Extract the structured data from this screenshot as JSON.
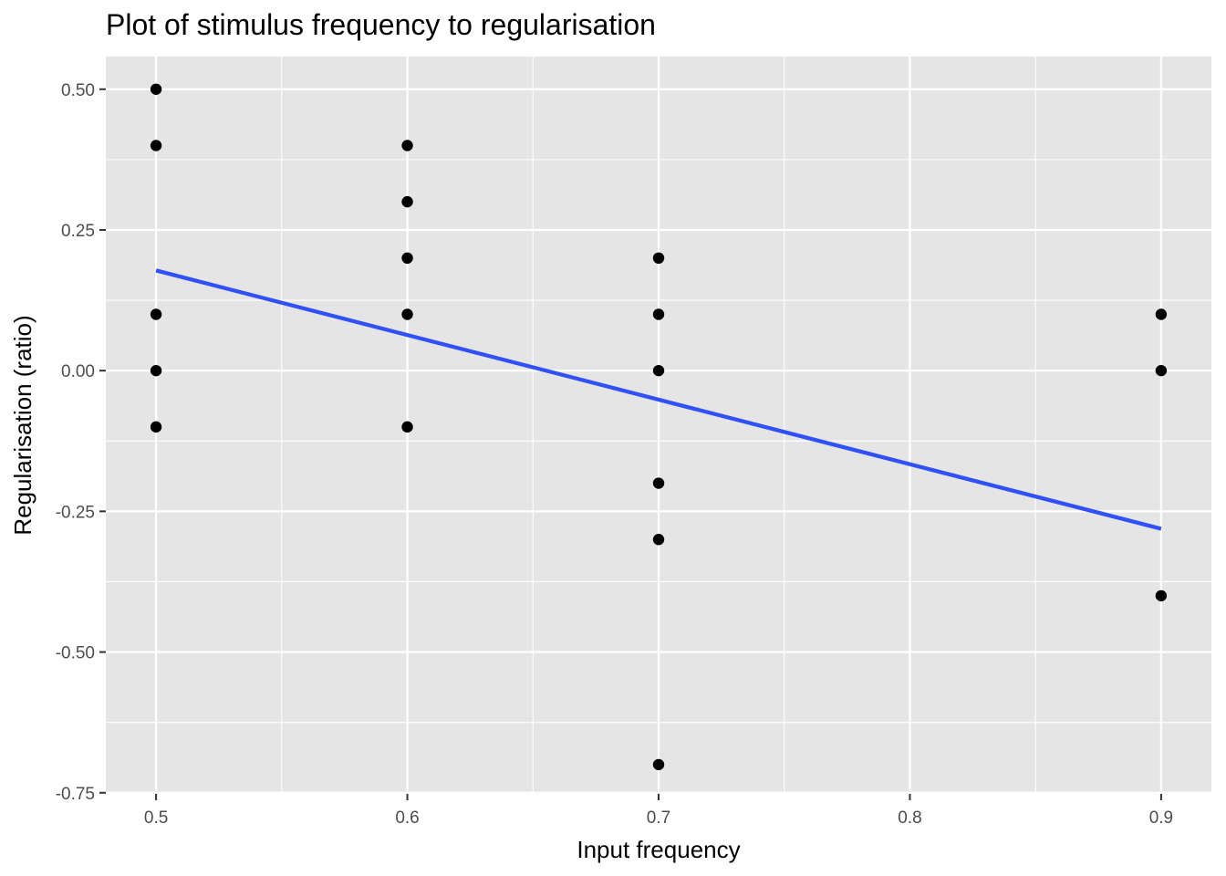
{
  "chart_data": {
    "type": "scatter",
    "title": "Plot of stimulus frequency to regularisation",
    "xlabel": "Input frequency",
    "ylabel": "Regularisation (ratio)",
    "xlim": [
      0.48,
      0.92
    ],
    "ylim": [
      -0.752,
      0.558
    ],
    "x_ticks": [
      0.5,
      0.6,
      0.7,
      0.8,
      0.9
    ],
    "x_tick_labels": [
      "0.5",
      "0.6",
      "0.7",
      "0.8",
      "0.9"
    ],
    "x_minor_ticks": [
      0.55,
      0.65,
      0.75,
      0.85
    ],
    "y_ticks": [
      -0.75,
      -0.5,
      -0.25,
      0.0,
      0.25,
      0.5
    ],
    "y_tick_labels": [
      "-0.75",
      "-0.50",
      "-0.25",
      "0.00",
      "0.25",
      "0.50"
    ],
    "y_minor_ticks": [
      -0.625,
      -0.375,
      -0.125,
      0.125,
      0.375
    ],
    "grid": true,
    "colors": {
      "panel_background": "#e5e5e5",
      "grid": "#ffffff",
      "points": "#000000",
      "trend_line": "#3050f8"
    },
    "points": [
      {
        "x": 0.5,
        "y": 0.5
      },
      {
        "x": 0.5,
        "y": 0.4
      },
      {
        "x": 0.5,
        "y": 0.1
      },
      {
        "x": 0.5,
        "y": 0.0
      },
      {
        "x": 0.5,
        "y": -0.1
      },
      {
        "x": 0.6,
        "y": 0.4
      },
      {
        "x": 0.6,
        "y": 0.3
      },
      {
        "x": 0.6,
        "y": 0.2
      },
      {
        "x": 0.6,
        "y": 0.1
      },
      {
        "x": 0.6,
        "y": -0.1
      },
      {
        "x": 0.7,
        "y": 0.2
      },
      {
        "x": 0.7,
        "y": 0.1
      },
      {
        "x": 0.7,
        "y": 0.0
      },
      {
        "x": 0.7,
        "y": -0.2
      },
      {
        "x": 0.7,
        "y": -0.3
      },
      {
        "x": 0.7,
        "y": -0.7
      },
      {
        "x": 0.9,
        "y": 0.1
      },
      {
        "x": 0.9,
        "y": 0.0
      },
      {
        "x": 0.9,
        "y": -0.4
      }
    ],
    "trend_line": {
      "x": [
        0.5,
        0.9
      ],
      "y": [
        0.178,
        -0.281
      ]
    }
  }
}
